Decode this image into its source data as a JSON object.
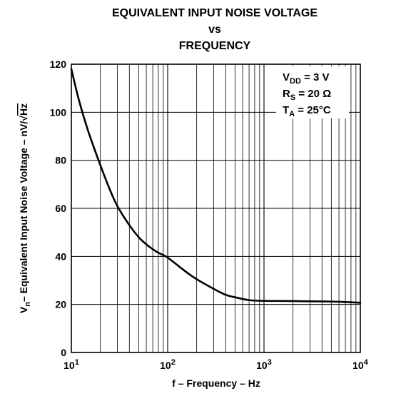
{
  "chart_data": {
    "type": "line",
    "title": [
      "EQUIVALENT INPUT NOISE VOLTAGE",
      "vs",
      "FREQUENCY"
    ],
    "xlabel": "f – Frequency – Hz",
    "ylabel": {
      "symbol": "V",
      "symbol_sub": "n",
      "text": "– Equivalent Input Noise Voltage – nV/",
      "radical": "√",
      "radicand": "Hz"
    },
    "x_scale": "log",
    "xlim": [
      10,
      10000
    ],
    "ylim": [
      0,
      120
    ],
    "grid": true,
    "x_ticks": [
      {
        "value": 10,
        "base": "10",
        "exp": "1"
      },
      {
        "value": 100,
        "base": "10",
        "exp": "2"
      },
      {
        "value": 1000,
        "base": "10",
        "exp": "3"
      },
      {
        "value": 10000,
        "base": "10",
        "exp": "4"
      }
    ],
    "y_ticks": [
      {
        "value": 0,
        "label": "0"
      },
      {
        "value": 20,
        "label": "20"
      },
      {
        "value": 40,
        "label": "40"
      },
      {
        "value": 60,
        "label": "60"
      },
      {
        "value": 80,
        "label": "80"
      },
      {
        "value": 100,
        "label": "100"
      },
      {
        "value": 120,
        "label": "120"
      }
    ],
    "series": [
      {
        "color": "#000000",
        "x": [
          10,
          12,
          15,
          20,
          25,
          30,
          40,
          50,
          60,
          70,
          80,
          100,
          150,
          200,
          300,
          400,
          500,
          700,
          1000,
          2000,
          3000,
          5000,
          7000,
          10000
        ],
        "y": [
          118,
          105,
          92,
          78,
          68,
          61,
          53,
          48,
          45,
          43,
          41.5,
          39.5,
          34,
          30.5,
          26.5,
          24,
          23,
          21.8,
          21.5,
          21.4,
          21.3,
          21.2,
          21.0,
          20.7
        ]
      }
    ],
    "annotation": [
      {
        "main": "V",
        "sub": "DD",
        "rest": " = 3 V"
      },
      {
        "main": "R",
        "sub": "S",
        "rest": " = 20 Ω"
      },
      {
        "main": "T",
        "sub": "A",
        "rest": " = 25°C"
      }
    ]
  }
}
